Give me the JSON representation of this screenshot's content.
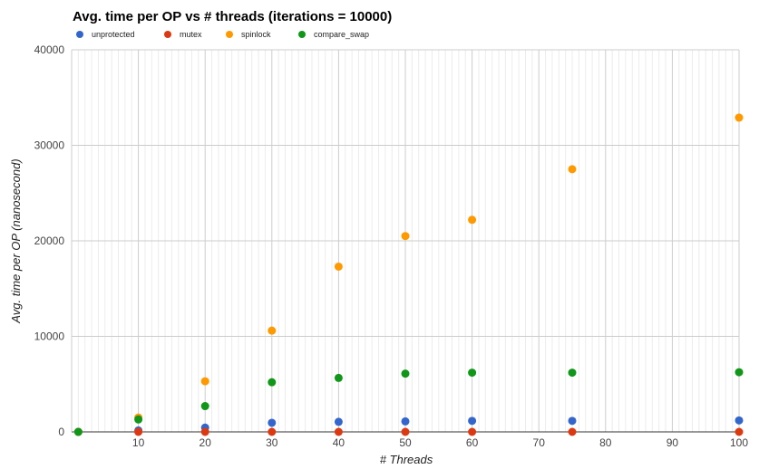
{
  "chart_data": {
    "type": "scatter",
    "title": "Avg. time per OP vs # threads (iterations = 10000)",
    "xlabel": "# Threads",
    "ylabel": "Avg. time per OP (nanosecond)",
    "xlim": [
      0,
      100
    ],
    "ylim": [
      0,
      40000
    ],
    "x_ticks": [
      10,
      20,
      30,
      40,
      50,
      60,
      70,
      80,
      90,
      100
    ],
    "y_ticks": [
      0,
      10000,
      20000,
      30000,
      40000
    ],
    "grid": true,
    "legend_position": "top-left",
    "x": [
      1,
      10,
      20,
      30,
      40,
      50,
      60,
      75,
      100
    ],
    "series": [
      {
        "name": "unprotected",
        "color": "#3366cc",
        "values": [
          0,
          150,
          450,
          950,
          1050,
          1100,
          1150,
          1150,
          1200
        ]
      },
      {
        "name": "mutex",
        "color": "#dc3912",
        "values": [
          0,
          0,
          0,
          0,
          0,
          0,
          0,
          0,
          0
        ]
      },
      {
        "name": "spinlock",
        "color": "#ff9900",
        "values": [
          0,
          1500,
          5300,
          10600,
          17300,
          20500,
          22200,
          27500,
          32900
        ]
      },
      {
        "name": "compare_swap",
        "color": "#109618",
        "values": [
          0,
          1300,
          2700,
          5200,
          5650,
          6100,
          6200,
          6200,
          6250
        ]
      }
    ]
  }
}
